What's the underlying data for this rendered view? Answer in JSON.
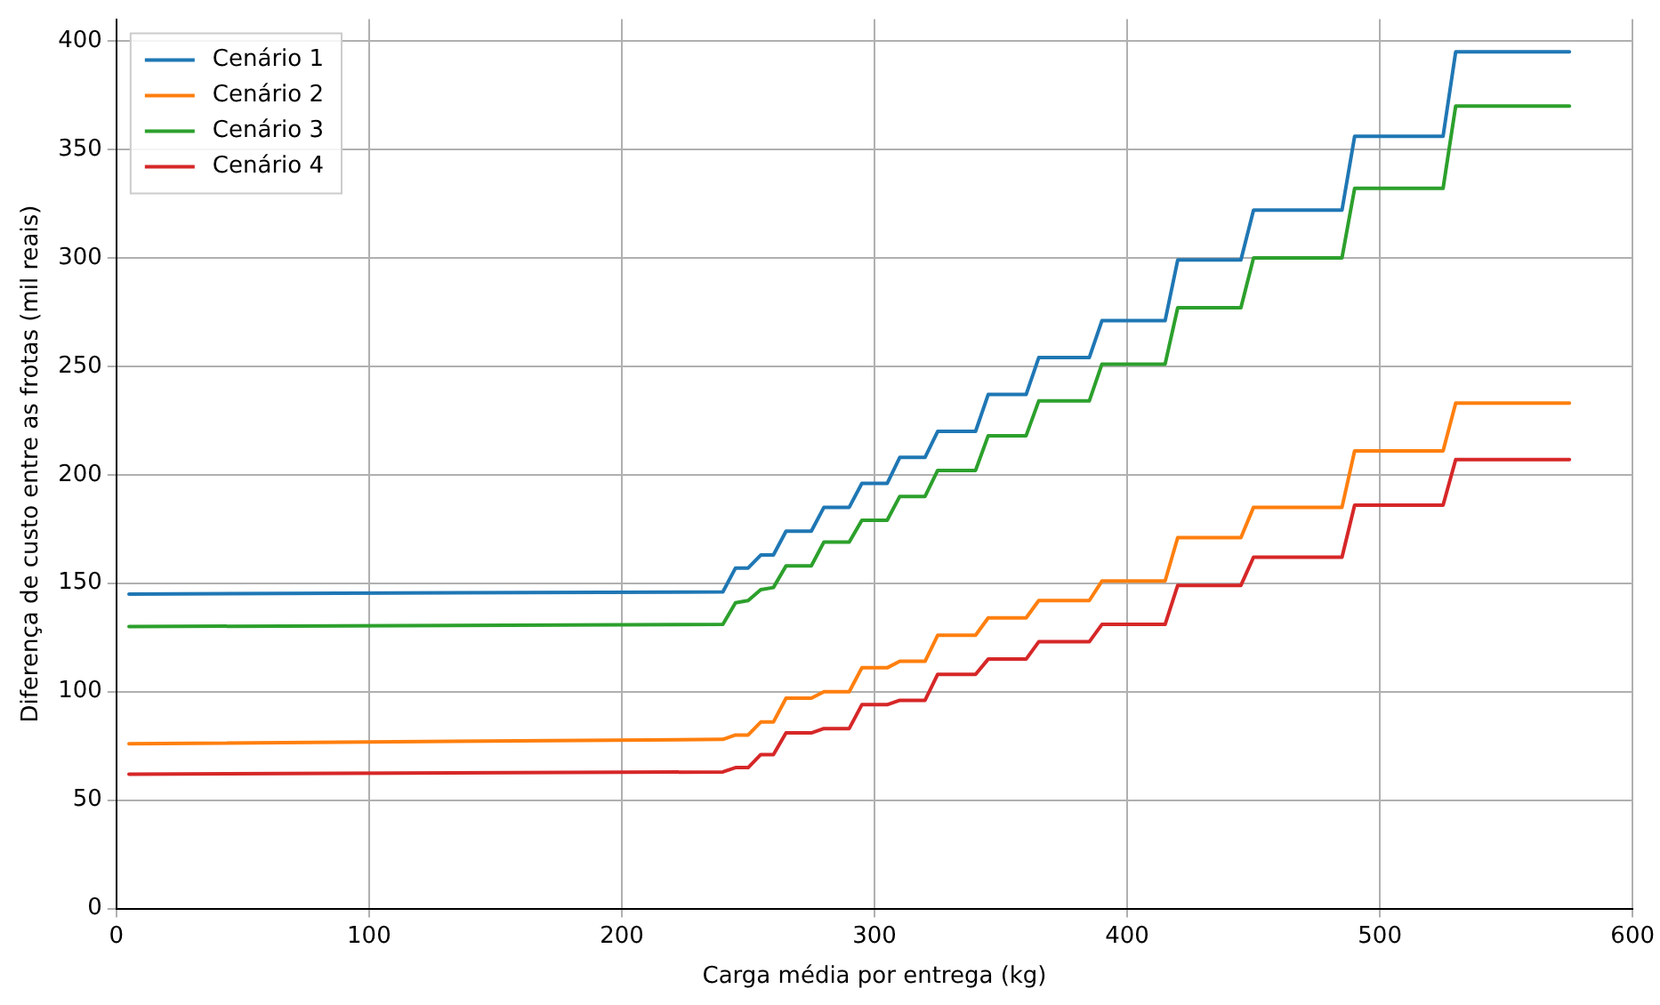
{
  "chart_data": {
    "type": "line",
    "xlabel": "Carga média por entrega (kg)",
    "ylabel": "Diferença de custo entre as frotas (mil reais)",
    "x": [
      5,
      240,
      245,
      250,
      255,
      260,
      265,
      275,
      280,
      290,
      295,
      305,
      310,
      320,
      325,
      340,
      345,
      360,
      365,
      385,
      390,
      415,
      420,
      445,
      450,
      485,
      490,
      525,
      530,
      575
    ],
    "series": [
      {
        "name": "Cenário 1",
        "color": "#1f77b4",
        "values": [
          145,
          146,
          157,
          157,
          163,
          163,
          174,
          174,
          185,
          185,
          196,
          196,
          208,
          208,
          220,
          220,
          237,
          237,
          254,
          254,
          271,
          271,
          299,
          299,
          322,
          322,
          356,
          356,
          395,
          395
        ]
      },
      {
        "name": "Cenário 2",
        "color": "#ff7f0e",
        "values": [
          76,
          78,
          80,
          80,
          86,
          86,
          97,
          97,
          100,
          100,
          111,
          111,
          114,
          114,
          126,
          126,
          134,
          134,
          142,
          142,
          151,
          151,
          171,
          171,
          185,
          185,
          211,
          211,
          233,
          233
        ]
      },
      {
        "name": "Cenário 3",
        "color": "#2ca02c",
        "values": [
          130,
          131,
          141,
          142,
          147,
          148,
          158,
          158,
          169,
          169,
          179,
          179,
          190,
          190,
          202,
          202,
          218,
          218,
          234,
          234,
          251,
          251,
          277,
          277,
          300,
          300,
          332,
          332,
          370,
          370
        ]
      },
      {
        "name": "Cenário 4",
        "color": "#d62728",
        "values": [
          62,
          63,
          65,
          65,
          71,
          71,
          81,
          81,
          83,
          83,
          94,
          94,
          96,
          96,
          108,
          108,
          115,
          115,
          123,
          123,
          131,
          131,
          149,
          149,
          162,
          162,
          186,
          186,
          207,
          207
        ]
      }
    ],
    "xlim": [
      0,
      600
    ],
    "xticks": [
      0,
      100,
      200,
      300,
      400,
      500,
      600
    ],
    "ylim": [
      0,
      410
    ],
    "yticks": [
      0,
      50,
      100,
      150,
      200,
      250,
      300,
      350,
      400
    ],
    "grid": true,
    "legend": "top left",
    "marker": "none",
    "line_style": "solid"
  }
}
